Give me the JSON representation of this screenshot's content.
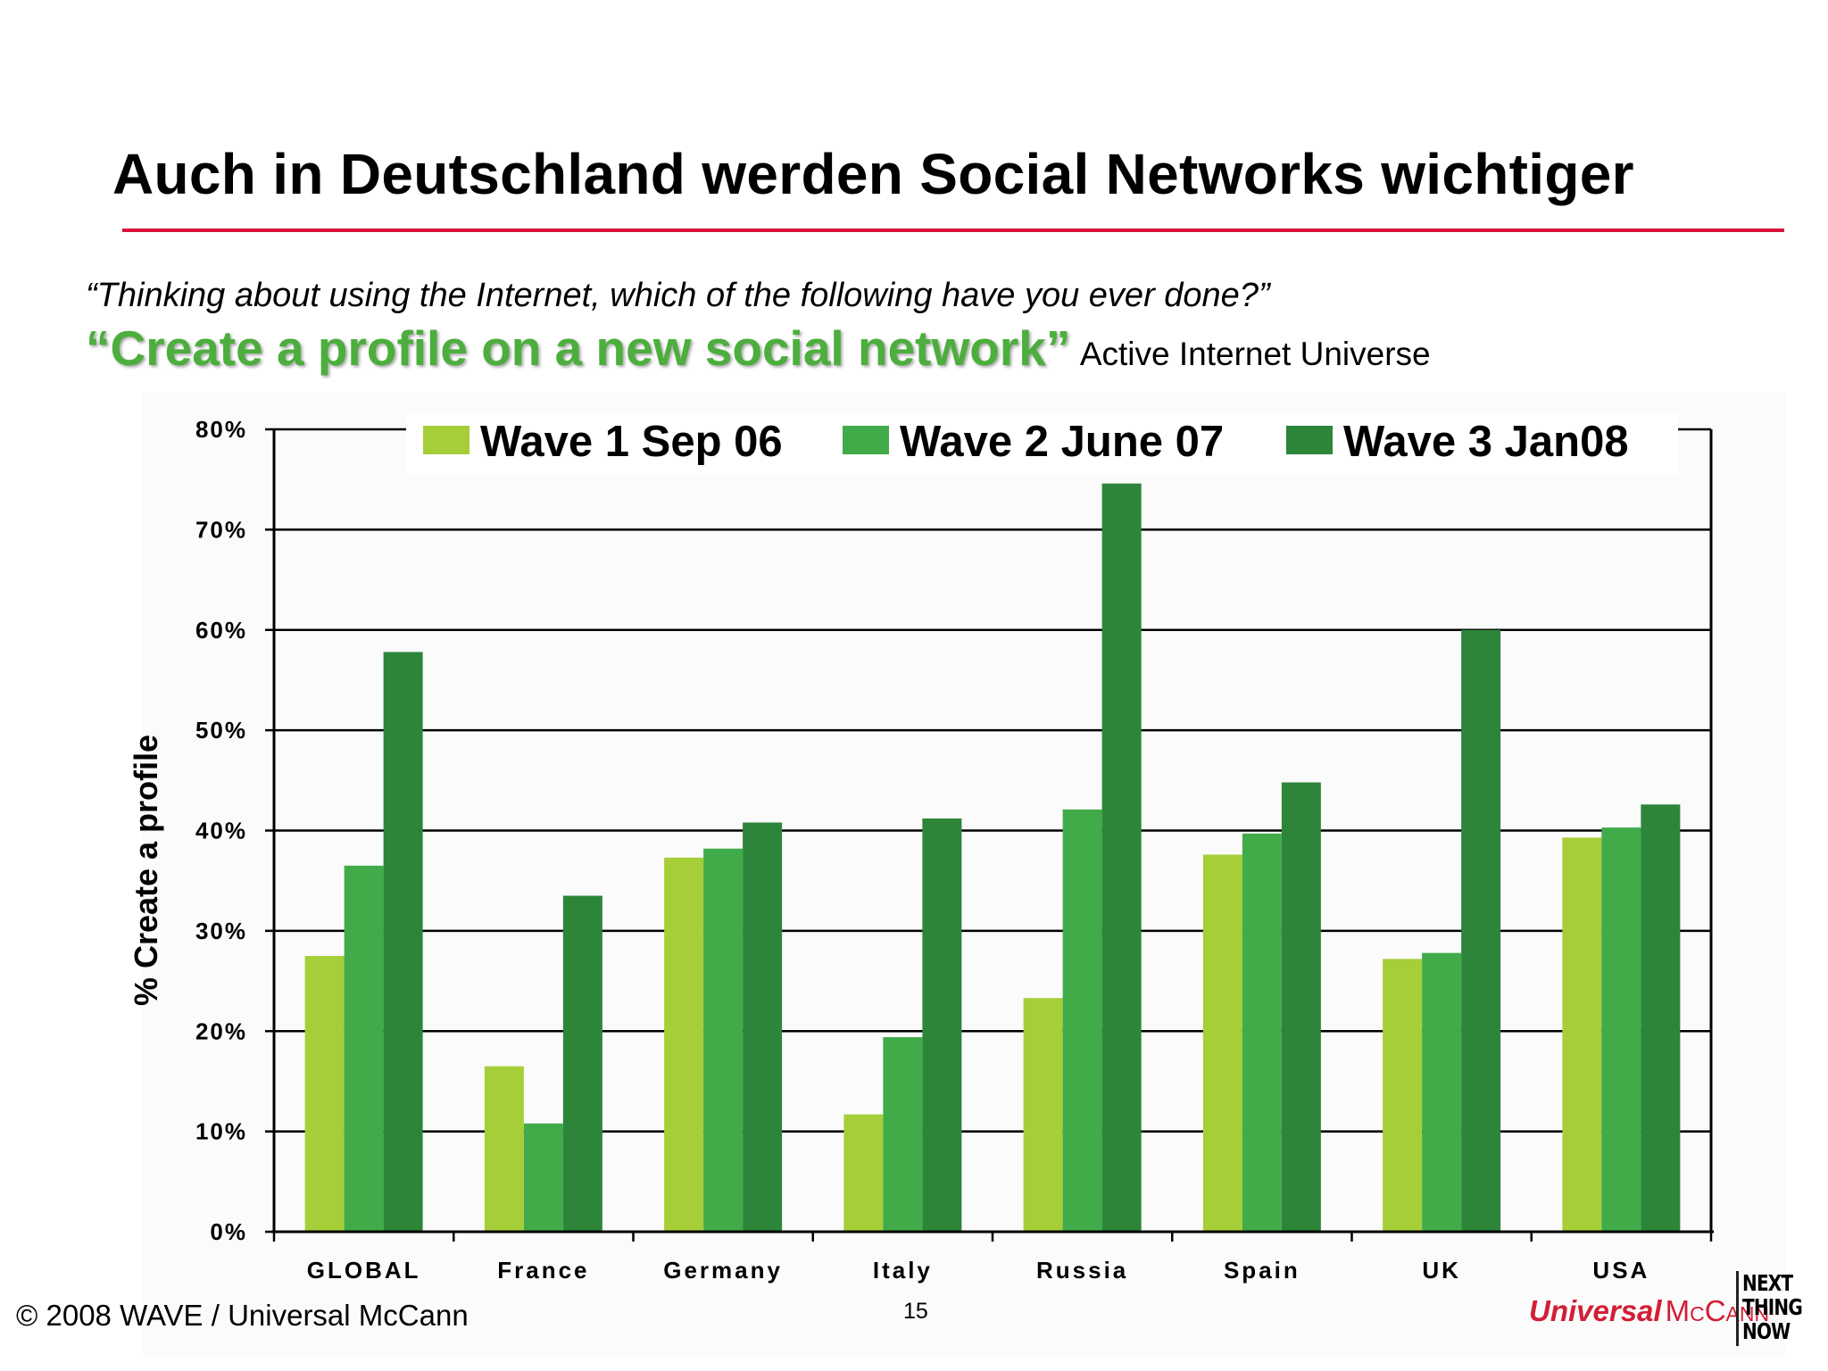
{
  "slide": {
    "title": "Auch in Deutschland werden Social Networks wichtiger",
    "question": "“Thinking about using the Internet, which of the following have you ever done?”",
    "headline_quote": "“Create a profile on a new social network”",
    "headline_universe": "Active Internet Universe"
  },
  "footer": {
    "copyright": "© 2008 WAVE / Universal McCann",
    "page_number": "15",
    "brand_part1": "Universal",
    "brand_part2": "McCann",
    "tagline_line1": "NEXT",
    "tagline_line2": "THING",
    "tagline_line3": "NOW"
  },
  "colors": {
    "accent_rule": "#d9143a",
    "headline_green": "#4cae3c",
    "brand_red": "#d11f36"
  },
  "chart_data": {
    "type": "bar",
    "title": "",
    "xlabel": "",
    "ylabel": "% Create a profile",
    "ylim": [
      0,
      80
    ],
    "yticks": [
      "0%",
      "10%",
      "20%",
      "30%",
      "40%",
      "50%",
      "60%",
      "70%",
      "80%"
    ],
    "grid": true,
    "legend_position": "top",
    "categories": [
      "GLOBAL",
      "France",
      "Germany",
      "Italy",
      "Russia",
      "Spain",
      "UK",
      "USA"
    ],
    "series": [
      {
        "name": "Wave 1 Sep 06",
        "color": "#a6ce39",
        "values": [
          27.5,
          16.5,
          37.3,
          11.7,
          23.3,
          37.6,
          27.2,
          39.3
        ]
      },
      {
        "name": "Wave 2 June 07",
        "color": "#41ab4a",
        "values": [
          36.5,
          10.8,
          38.2,
          19.4,
          42.1,
          39.7,
          27.8,
          40.3
        ]
      },
      {
        "name": "Wave 3 Jan08",
        "color": "#2d853a",
        "values": [
          57.8,
          33.5,
          40.8,
          41.2,
          74.6,
          44.8,
          60.0,
          42.6
        ]
      }
    ]
  }
}
